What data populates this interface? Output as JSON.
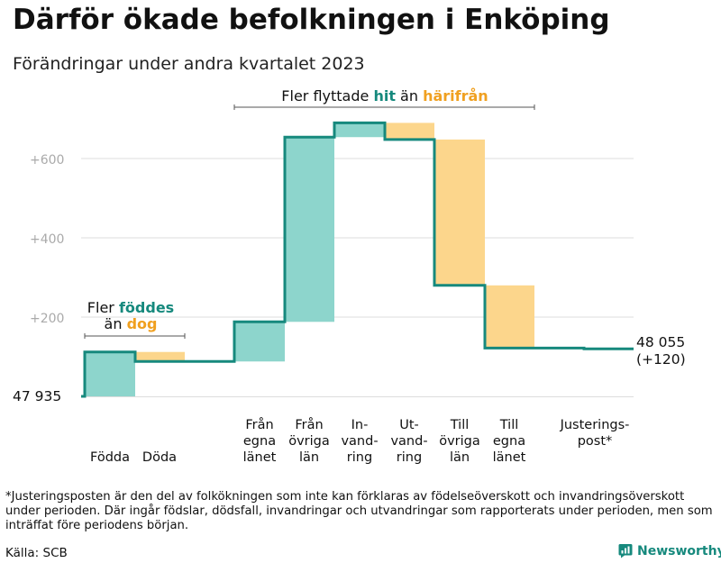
{
  "title": "Därför ökade befolkningen i Enköping",
  "subtitle": "Förändringar under andra kvartalet 2023",
  "footnote": "*Justeringsposten är den del av folkökningen som inte kan förklaras av födelseöverskott och invandringsöverskott under perioden. Där ingår födslar, dödsfall, invandringar och utvandringar som rapporterats under perioden, men som inträffat före periodens början.",
  "source": "Källa: SCB",
  "brand": "Newsworthy",
  "colors": {
    "positive": "#8dd5cc",
    "negative": "#fcd68c",
    "line": "#16897d",
    "hit_text": "#16897d",
    "harifran_text": "#f0a020",
    "grid": "#dddddd",
    "tick_text": "#aaaaaa"
  },
  "annotations": {
    "births_deaths": {
      "line1_prefix": "Fler",
      "line1_highlight": "föddes",
      "line2_prefix": "än",
      "line2_highlight": "dog"
    },
    "migration": {
      "prefix": "Fler flyttade",
      "highlight1": "hit",
      "middle": "än",
      "highlight2": "härifrån"
    }
  },
  "chart_data": {
    "type": "waterfall",
    "start_label": "47  935",
    "end_label": "48 055",
    "end_change_label": "(+120)",
    "start_value": 0,
    "end_value": 120,
    "ylim": [
      0,
      620
    ],
    "yticks": [
      200,
      400,
      600
    ],
    "ytick_labels": [
      "+200",
      "+400",
      "+600"
    ],
    "grid": true,
    "steps": [
      {
        "name": "Födda",
        "label_lines": [
          "Födda"
        ],
        "change": 112,
        "cumulative": 112
      },
      {
        "name": "Döda",
        "label_lines": [
          "Döda"
        ],
        "change": -24,
        "cumulative": 88
      },
      {
        "name": "Från egna länet",
        "label_lines": [
          "Från",
          "egna",
          "länet"
        ],
        "change": 100,
        "cumulative": 188
      },
      {
        "name": "Från övriga län",
        "label_lines": [
          "Från",
          "övriga",
          "län"
        ],
        "change": 466,
        "cumulative": 654
      },
      {
        "name": "Invandring",
        "label_lines": [
          "In-",
          "vand-",
          "ring"
        ],
        "change": 36,
        "cumulative": 690
      },
      {
        "name": "Utvandring",
        "label_lines": [
          "Ut-",
          "vand-",
          "ring"
        ],
        "change": -42,
        "cumulative": 648
      },
      {
        "name": "Till övriga län",
        "label_lines": [
          "Till",
          "övriga",
          "län"
        ],
        "change": -368,
        "cumulative": 280
      },
      {
        "name": "Till egna länet",
        "label_lines": [
          "Till",
          "egna",
          "länet"
        ],
        "change": -158,
        "cumulative": 122
      },
      {
        "name": "Justeringspost*",
        "label_lines": [
          "Justerings-",
          "post*"
        ],
        "change": -2,
        "cumulative": 120
      }
    ]
  }
}
